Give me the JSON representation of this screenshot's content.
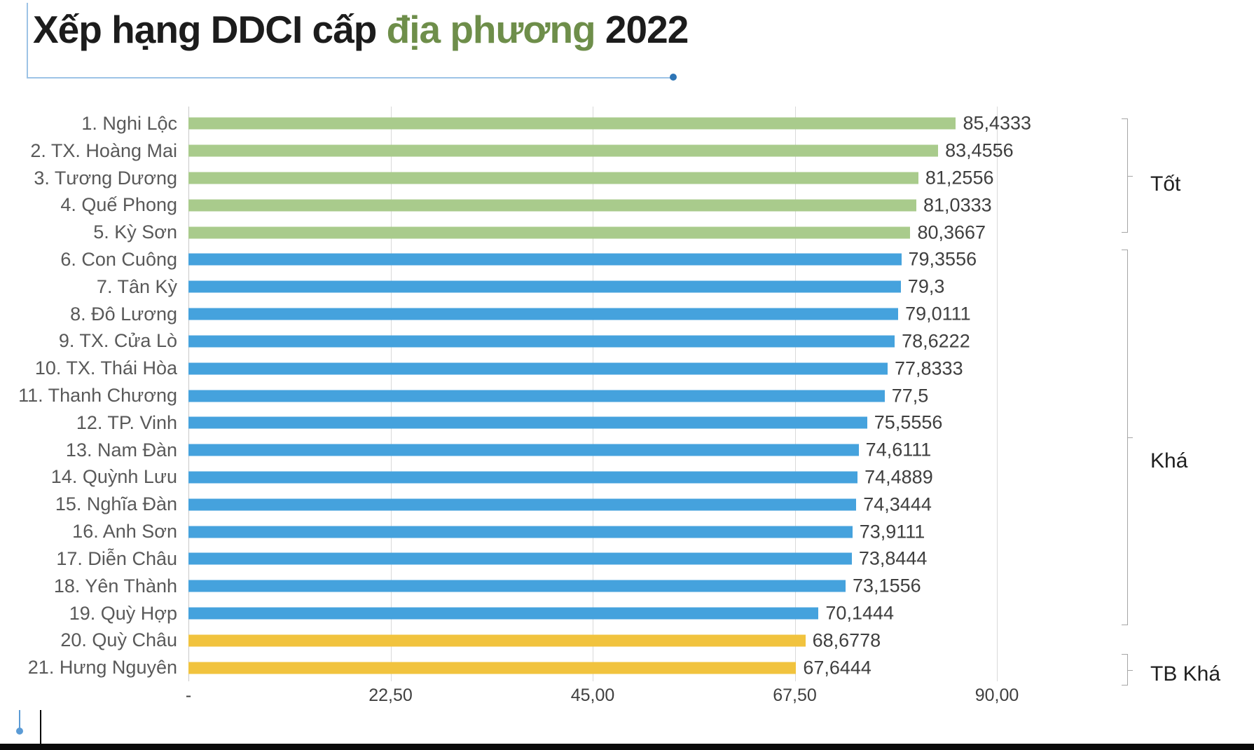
{
  "title": {
    "prefix": "Xếp hạng DDCI cấp ",
    "highlight": "địa phương",
    "suffix": " 2022"
  },
  "chart_data": {
    "type": "bar",
    "orientation": "horizontal",
    "title": "Xếp hạng DDCI cấp địa phương 2022",
    "xlabel": "",
    "ylabel": "",
    "xlim": [
      0,
      90
    ],
    "grid": "vertical",
    "x_ticks": [
      {
        "value": 0,
        "label": "-"
      },
      {
        "value": 22.5,
        "label": "22,50"
      },
      {
        "value": 45,
        "label": "45,00"
      },
      {
        "value": 67.5,
        "label": "67,50"
      },
      {
        "value": 90,
        "label": "90,00"
      }
    ],
    "categories": [
      "1. Nghi Lộc",
      "2. TX. Hoàng Mai",
      "3. Tương Dương",
      "4. Quế Phong",
      "5. Kỳ Sơn",
      "6. Con Cuông",
      "7. Tân Kỳ",
      "8. Đô Lương",
      "9. TX. Cửa Lò",
      "10. TX. Thái Hòa",
      "11. Thanh Chương",
      "12. TP. Vinh",
      "13. Nam Đàn",
      "14. Quỳnh Lưu",
      "15. Nghĩa Đàn",
      "16. Anh Sơn",
      "17. Diễn Châu",
      "18. Yên Thành",
      "19. Quỳ Hợp",
      "20. Quỳ Châu",
      "21. Hưng Nguyên"
    ],
    "values": [
      85.4333,
      83.4556,
      81.2556,
      81.0333,
      80.3667,
      79.3556,
      79.3,
      79.0111,
      78.6222,
      77.8333,
      77.5,
      75.5556,
      74.6111,
      74.4889,
      74.3444,
      73.9111,
      73.8444,
      73.1556,
      70.1444,
      68.6778,
      67.6444
    ],
    "value_labels": [
      "85,4333",
      "83,4556",
      "81,2556",
      "81,0333",
      "80,3667",
      "79,3556",
      "79,3",
      "79,0111",
      "78,6222",
      "77,8333",
      "77,5",
      "75,5556",
      "74,6111",
      "74,4889",
      "74,3444",
      "73,9111",
      "73,8444",
      "73,1556",
      "70,1444",
      "68,6778",
      "67,6444"
    ],
    "groups": [
      {
        "name": "Tốt",
        "start": 1,
        "end": 5,
        "color": "#a9cb8c"
      },
      {
        "name": "Khá",
        "start": 6,
        "end": 19,
        "color": "#45a2dd"
      },
      {
        "name": "TB Khá",
        "start": 20,
        "end": 21,
        "color": "#f1c33e"
      }
    ],
    "legend_position": "right-brackets"
  },
  "colors": {
    "title_text": "#1c1c1c",
    "title_highlight": "#6e8e4a",
    "bar_good": "#a9cb8c",
    "bar_fair": "#45a2dd",
    "bar_avg": "#f1c33e",
    "gridline": "#d9d9d9",
    "category_label": "#595959",
    "value_label": "#3f3f3f",
    "accent_line": "#9dc3e6",
    "accent_dot": "#2e75b6"
  }
}
